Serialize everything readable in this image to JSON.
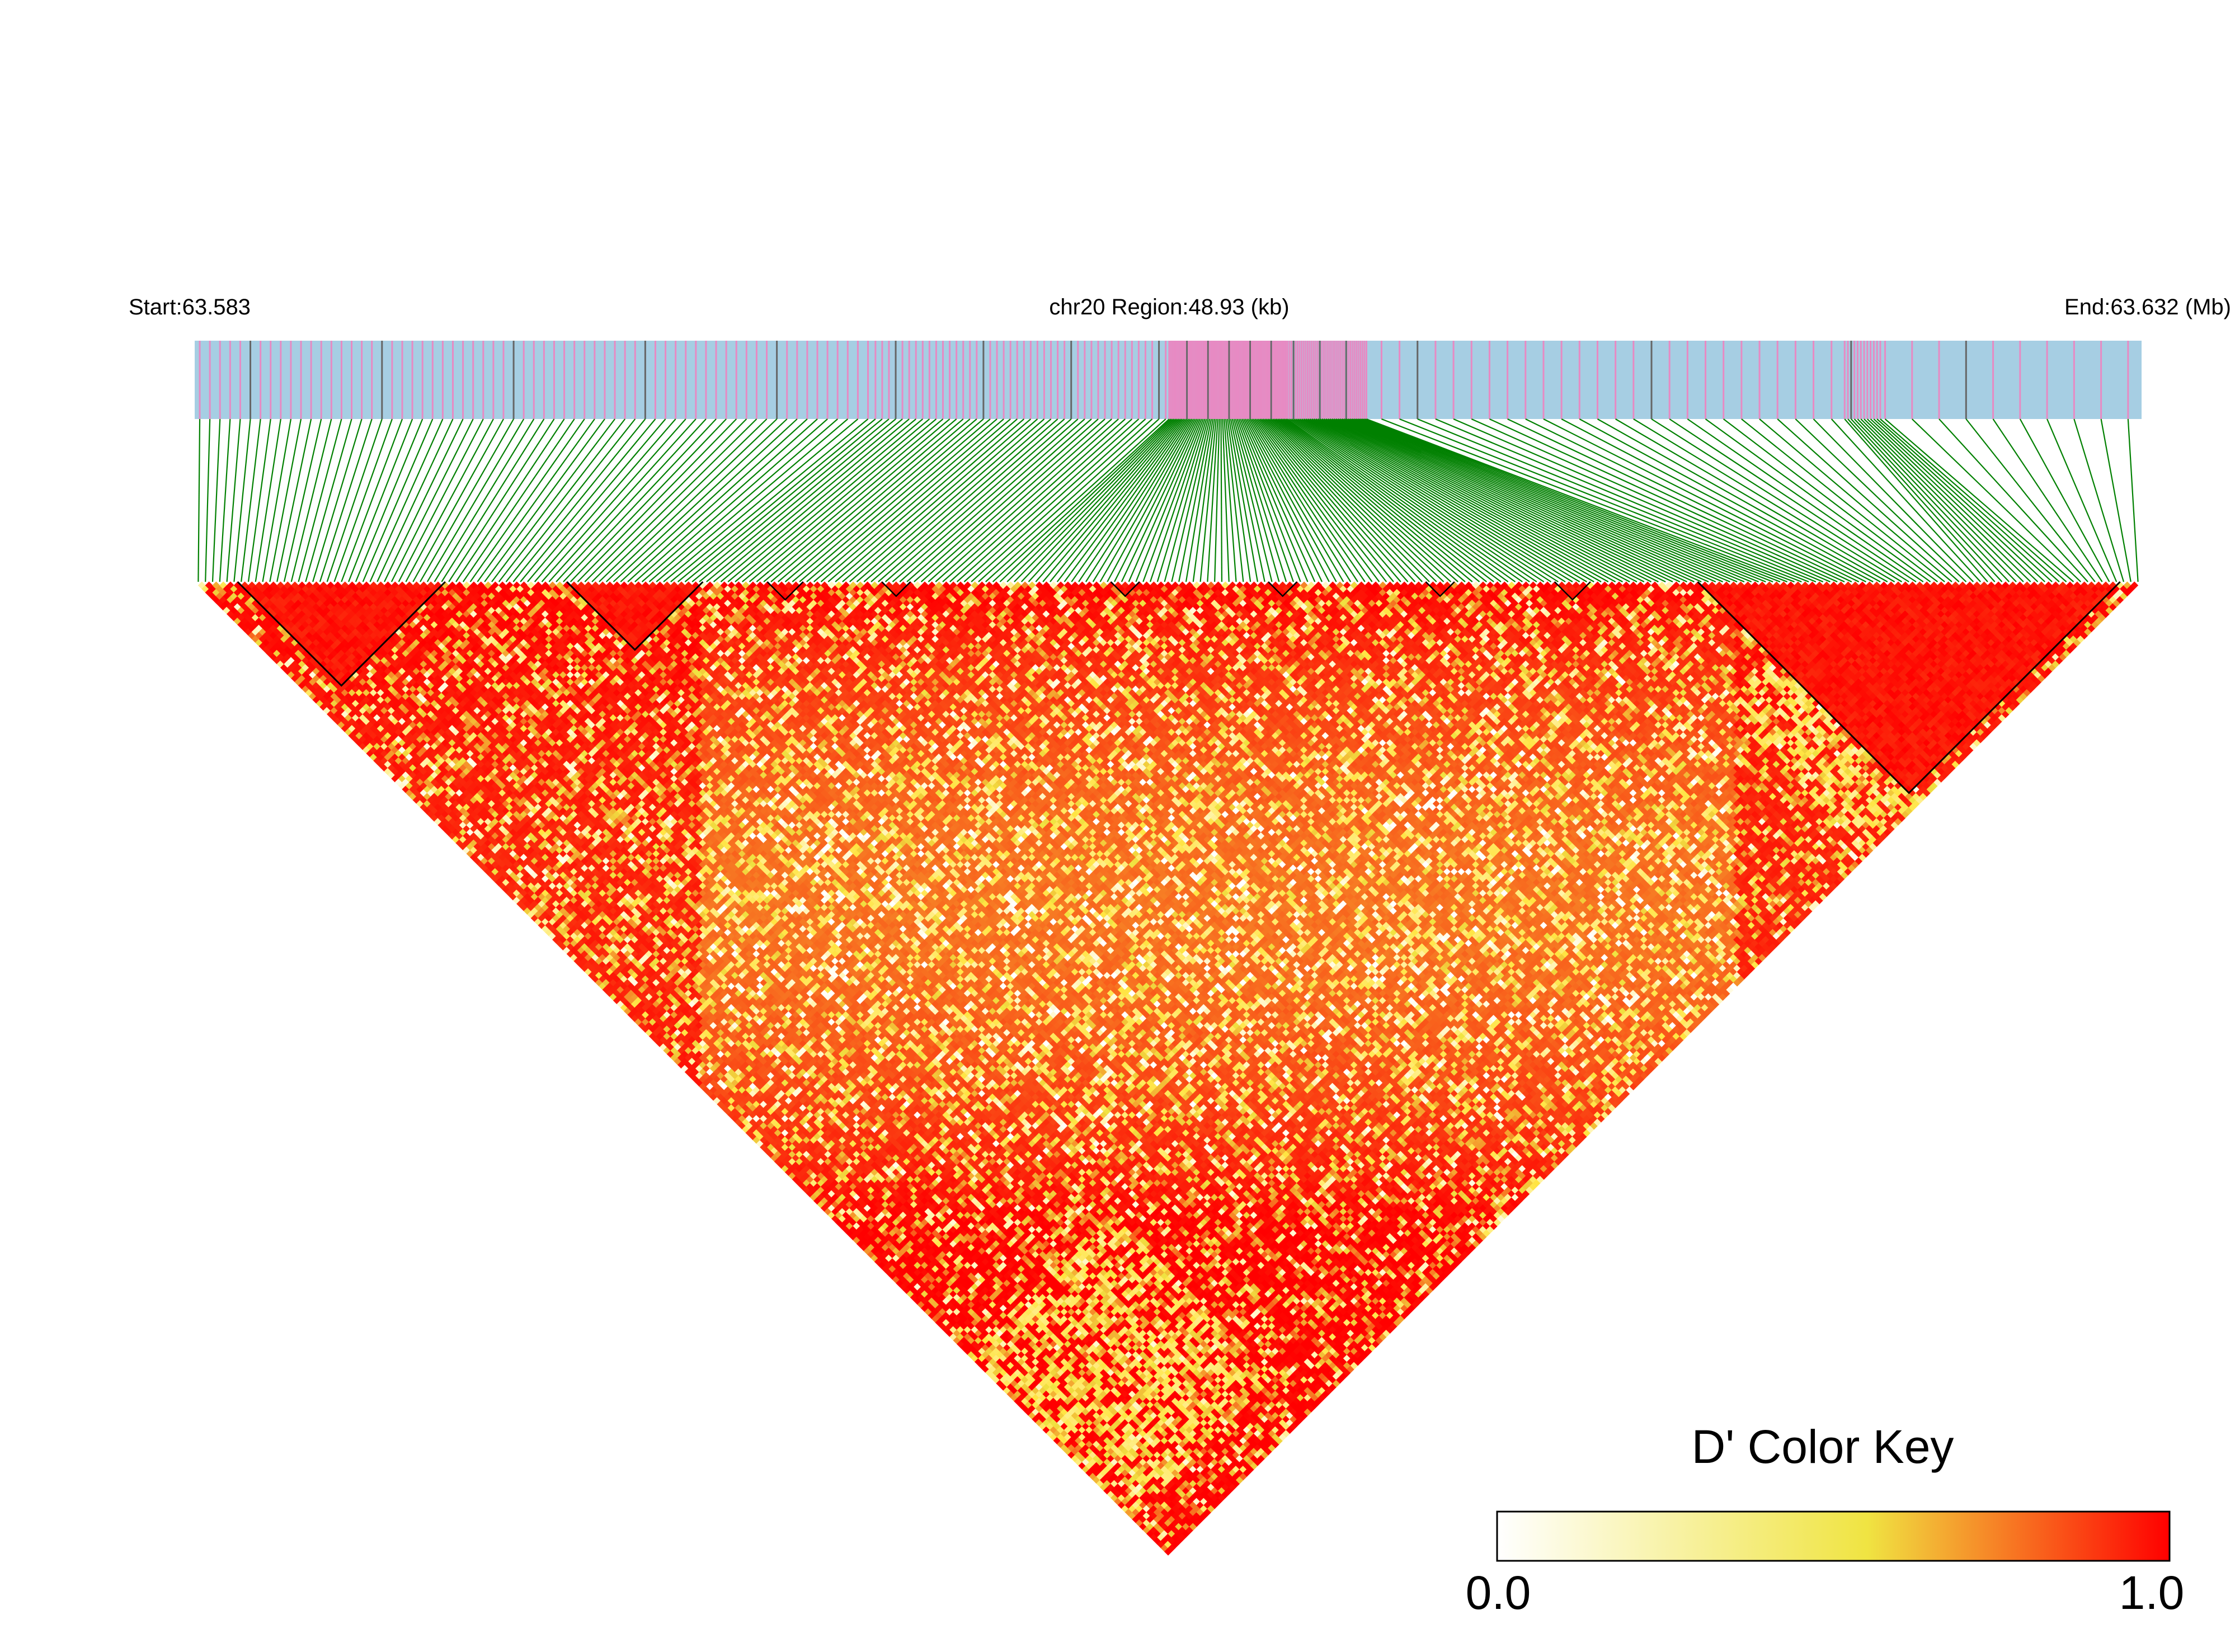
{
  "header": {
    "start_label": "Start:63.583",
    "region_label": "chr20 Region:48.93 (kb)",
    "end_label": "End:63.632 (Mb)"
  },
  "legend": {
    "title": "D' Color Key",
    "min_label": "0.0",
    "max_label": "1.0"
  },
  "colors": {
    "track_background": "#a6cee3",
    "snp_tick": "#e78ac3",
    "snp_tick_dark": "#666666",
    "connector": "#008000",
    "ld_low": "#ffffff",
    "ld_mid": "#f0e442",
    "ld_high": "#ff0000",
    "block_outline": "#000000"
  },
  "chart_data": {
    "type": "heatmap",
    "description_kind": "LD (D') triangle heatmap for SNPs in a genomic region",
    "chromosome": "chr20",
    "region_start_mb": 63.583,
    "region_end_mb": 63.632,
    "region_length_kb": 48.93,
    "snp_count": 272,
    "value_name": "D'",
    "value_range": [
      0.0,
      1.0
    ],
    "color_scale": [
      "#ffffff",
      "#f0e442",
      "#ff0000"
    ],
    "snp_density_segments": [
      {
        "from_mb": 63.583,
        "to_mb": 63.6,
        "weight": 1.6
      },
      {
        "from_mb": 63.6,
        "to_mb": 63.6075,
        "weight": 2.4
      },
      {
        "from_mb": 63.6075,
        "to_mb": 63.6105,
        "weight": 10.0
      },
      {
        "from_mb": 63.6105,
        "to_mb": 63.6125,
        "weight": 8.0
      },
      {
        "from_mb": 63.6125,
        "to_mb": 63.6245,
        "weight": 0.9
      },
      {
        "from_mb": 63.6245,
        "to_mb": 63.6255,
        "weight": 5.0
      },
      {
        "from_mb": 63.6255,
        "to_mb": 63.632,
        "weight": 0.6
      }
    ],
    "high_ld_blocks": [
      {
        "first_snp": 6,
        "last_snp": 34
      },
      {
        "first_snp": 52,
        "last_snp": 70
      },
      {
        "first_snp": 210,
        "last_snp": 268
      }
    ],
    "small_blocks": [
      {
        "first_snp": 80,
        "last_snp": 84
      },
      {
        "first_snp": 96,
        "last_snp": 99
      },
      {
        "first_snp": 128,
        "last_snp": 131
      },
      {
        "first_snp": 150,
        "last_snp": 153
      },
      {
        "first_snp": 172,
        "last_snp": 175
      },
      {
        "first_snp": 190,
        "last_snp": 194
      }
    ]
  }
}
